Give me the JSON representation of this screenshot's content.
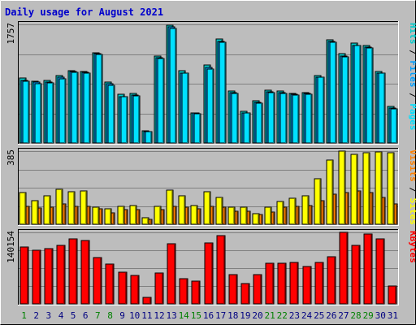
{
  "title": "Daily usage for August 2021",
  "colors": {
    "frame_bg": "#bdbdbd",
    "title_text": "#0000cc",
    "gridline": "#808080",
    "hits": "#00cccc",
    "files": "#00a0ff",
    "pages": "#00e0ff",
    "visits": "#ff8000",
    "sites": "#ffff00",
    "kbytes": "#ff0000",
    "weekday_label": "#000080",
    "weekend_label": "#008000"
  },
  "chart_data": [
    {
      "type": "bar",
      "panel": "top",
      "ymax_label": "1757",
      "ymax": 1757,
      "right_label": [
        "Pages",
        "Files",
        "Hits"
      ],
      "x": [
        "1",
        "2",
        "3",
        "4",
        "5",
        "6",
        "7",
        "8",
        "9",
        "10",
        "11",
        "12",
        "13",
        "14",
        "15",
        "16",
        "17",
        "18",
        "19",
        "20",
        "21",
        "22",
        "23",
        "24",
        "25",
        "26",
        "27",
        "28",
        "29",
        "30",
        "31"
      ],
      "series": [
        {
          "name": "Hits",
          "values": [
            960,
            920,
            930,
            1000,
            1070,
            1060,
            1330,
            900,
            720,
            730,
            180,
            1290,
            1750,
            1070,
            450,
            1150,
            1540,
            770,
            470,
            620,
            780,
            770,
            740,
            750,
            1000,
            1530,
            1320,
            1480,
            1440,
            1060,
            540
          ]
        },
        {
          "name": "Files",
          "values": [
            930,
            900,
            900,
            970,
            1060,
            1050,
            1320,
            880,
            690,
            710,
            170,
            1260,
            1720,
            1040,
            440,
            1120,
            1510,
            750,
            450,
            600,
            760,
            750,
            720,
            730,
            980,
            1500,
            1290,
            1450,
            1420,
            1040,
            520
          ]
        },
        {
          "name": "Pages",
          "values": [
            920,
            880,
            890,
            950,
            1050,
            1040,
            1310,
            860,
            680,
            700,
            170,
            1250,
            1700,
            1030,
            430,
            1100,
            1490,
            740,
            440,
            590,
            750,
            740,
            710,
            720,
            970,
            1490,
            1280,
            1440,
            1410,
            1030,
            510
          ]
        }
      ]
    },
    {
      "type": "bar",
      "panel": "middle",
      "ymax_label": "385",
      "ymax": 385,
      "right_label": [
        "Sites",
        "Visits"
      ],
      "x": [
        "1",
        "2",
        "3",
        "4",
        "5",
        "6",
        "7",
        "8",
        "9",
        "10",
        "11",
        "12",
        "13",
        "14",
        "15",
        "16",
        "17",
        "18",
        "19",
        "20",
        "21",
        "22",
        "23",
        "24",
        "25",
        "26",
        "27",
        "28",
        "29",
        "30",
        "31"
      ],
      "series": [
        {
          "name": "Visits",
          "values": [
            95,
            85,
            90,
            105,
            95,
            95,
            80,
            60,
            75,
            75,
            25,
            75,
            95,
            90,
            80,
            95,
            90,
            70,
            70,
            50,
            65,
            90,
            95,
            100,
            125,
            160,
            165,
            175,
            165,
            140,
            105
          ]
        },
        {
          "name": "Sites",
          "values": [
            165,
            125,
            150,
            185,
            170,
            175,
            90,
            80,
            95,
            100,
            35,
            95,
            180,
            150,
            100,
            170,
            140,
            90,
            90,
            55,
            90,
            120,
            135,
            150,
            240,
            340,
            385,
            370,
            375,
            380,
            375
          ]
        }
      ]
    },
    {
      "type": "bar",
      "panel": "bottom",
      "ymax_label": "140154",
      "ymax": 140154,
      "right_label": [
        "KBytes"
      ],
      "x": [
        "1",
        "2",
        "3",
        "4",
        "5",
        "6",
        "7",
        "8",
        "9",
        "10",
        "11",
        "12",
        "13",
        "14",
        "15",
        "16",
        "17",
        "18",
        "19",
        "20",
        "21",
        "22",
        "23",
        "24",
        "25",
        "26",
        "27",
        "28",
        "29",
        "30",
        "31"
      ],
      "series": [
        {
          "name": "KBytes",
          "values": [
            112000,
            105000,
            108000,
            115000,
            128000,
            124000,
            90000,
            78000,
            62000,
            55000,
            12000,
            60000,
            118000,
            50000,
            45000,
            120000,
            133000,
            58000,
            40000,
            58000,
            79000,
            79000,
            82000,
            74000,
            82000,
            93000,
            140000,
            115000,
            137000,
            127000,
            35000
          ]
        }
      ]
    }
  ],
  "x_labels": {
    "days": [
      "1",
      "2",
      "3",
      "4",
      "5",
      "6",
      "7",
      "8",
      "9",
      "10",
      "11",
      "12",
      "13",
      "14",
      "15",
      "16",
      "17",
      "18",
      "19",
      "20",
      "21",
      "22",
      "23",
      "24",
      "25",
      "26",
      "27",
      "28",
      "29",
      "30",
      "31"
    ],
    "weekend_days": [
      "1",
      "7",
      "8",
      "14",
      "15",
      "21",
      "22",
      "28",
      "29"
    ]
  }
}
